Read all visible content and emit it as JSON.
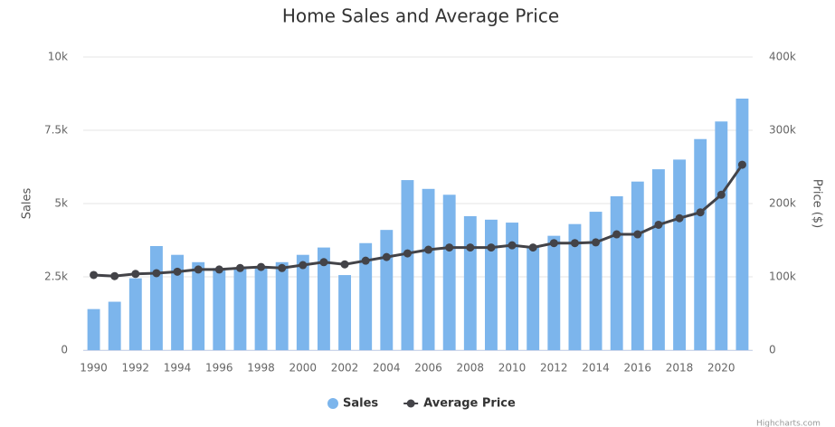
{
  "chart_data": {
    "type": "bar_line",
    "title": "Home Sales and Average Price",
    "y_label": "Sales",
    "y2_label": "Price ($)",
    "credits": "Highcharts.com",
    "categories": [
      "1990",
      null,
      "1992",
      null,
      "1994",
      null,
      "1996",
      null,
      "1998",
      null,
      "2000",
      null,
      "2002",
      null,
      "2004",
      null,
      "2006",
      null,
      "2008",
      null,
      "2010",
      null,
      "2012",
      null,
      "2014",
      null,
      "2016",
      null,
      "2018",
      null,
      "2020",
      null
    ],
    "series": [
      {
        "name": "Sales",
        "type": "bar",
        "color": "#7cb5ec",
        "axis": "y",
        "values": [
          1400,
          1650,
          2450,
          3550,
          3250,
          3000,
          2800,
          2800,
          2850,
          3000,
          3250,
          3500,
          2560,
          3650,
          4100,
          5800,
          5500,
          5300,
          4570,
          4450,
          4350,
          3550,
          3900,
          4300,
          4720,
          5250,
          5750,
          6170,
          6500,
          7200,
          7800,
          8580
        ]
      },
      {
        "name": "Average Price",
        "type": "line",
        "color": "#434348",
        "axis": "y2",
        "values": [
          102500,
          101000,
          104000,
          105000,
          107000,
          110000,
          110000,
          112000,
          113500,
          112000,
          116000,
          120000,
          117000,
          122000,
          127000,
          132000,
          137000,
          140000,
          140000,
          140000,
          143000,
          140000,
          146000,
          146000,
          147000,
          158000,
          158000,
          171000,
          180000,
          188000,
          212000,
          253000
        ]
      }
    ],
    "ylim": [
      0,
      10000
    ],
    "yticks": [
      0,
      {
        "value": 2500,
        "label": "2.5k"
      },
      {
        "value": 5000,
        "label": "5k"
      },
      {
        "value": 7500,
        "label": "7.5k"
      },
      {
        "value": 10000,
        "label": "10k"
      }
    ],
    "y2lim": [
      0,
      400000
    ],
    "y2ticks": [
      0,
      {
        "value": 100000,
        "label": "100k"
      },
      {
        "value": 200000,
        "label": "200k"
      },
      {
        "value": 300000,
        "label": "300k"
      },
      {
        "value": 400000,
        "label": "400k"
      }
    ],
    "grid": true,
    "legend": "bottom"
  }
}
